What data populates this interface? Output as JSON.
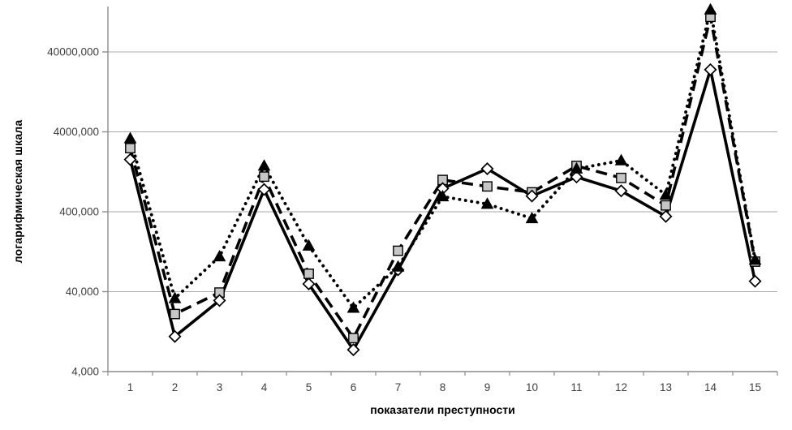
{
  "chart_data": {
    "type": "line",
    "title": "",
    "xlabel": "показатели преступности",
    "ylabel": "логарифмическая шкала",
    "x_categories": [
      "1",
      "2",
      "3",
      "4",
      "5",
      "6",
      "7",
      "8",
      "9",
      "10",
      "11",
      "12",
      "13",
      "14",
      "15"
    ],
    "y_axis": {
      "scale": "log",
      "tick_labels": [
        "4,000",
        "40,000",
        "400,000",
        "4000,000",
        "40000,000"
      ],
      "tick_values": [
        4000,
        40000,
        400000,
        4000000,
        40000000
      ],
      "ylim": [
        4000,
        180000000
      ]
    },
    "grid": "horizontal-decades",
    "legend": "none",
    "series": [
      {
        "name": "dashed-square-series",
        "marker": "square",
        "line": "dashed",
        "values": [
          2500000,
          21000,
          39000,
          1100000,
          67000,
          10500,
          130000,
          1000000,
          830000,
          700000,
          1500000,
          1060000,
          480000,
          110000000,
          95000
        ]
      },
      {
        "name": "solid-diamond-series",
        "marker": "diamond",
        "line": "solid",
        "values": [
          1800000,
          11000,
          31000,
          760000,
          50000,
          7500,
          75000,
          780000,
          1380000,
          630000,
          1090000,
          730000,
          350000,
          24000000,
          54000
        ]
      },
      {
        "name": "dotted-triangle-series",
        "marker": "triangle",
        "line": "dotted",
        "values": [
          3300000,
          33000,
          110000,
          1500000,
          150000,
          25000,
          82000,
          620000,
          500000,
          330000,
          1380000,
          1750000,
          650000,
          135000000,
          100000
        ]
      }
    ],
    "colors": {
      "series_line": "#000000",
      "gridline": "#a9a9a9",
      "axis": "#8c8c8c",
      "tick": "#8c8c8c",
      "tick_label": "#3f3f3f",
      "square_fill": "#c6c6c6",
      "diamond_fill": "#ffffff",
      "triangle_fill": "#000000",
      "background": "#ffffff"
    }
  }
}
